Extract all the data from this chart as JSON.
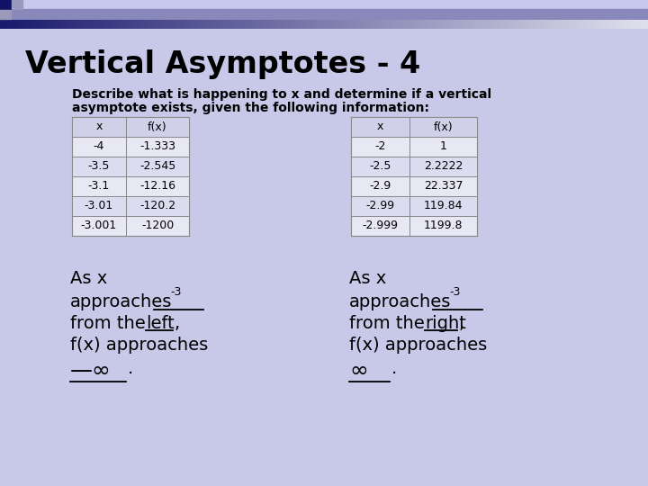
{
  "title": "Vertical Asymptotes - 4",
  "subtitle_line1": "Describe what is happening to x and determine if a vertical",
  "subtitle_line2": "asymptote exists, given the following information:",
  "bg_color": "#c8c8e8",
  "table1": {
    "headers": [
      "x",
      "f(x)"
    ],
    "rows": [
      [
        "-4",
        "-1.333"
      ],
      [
        "-3.5",
        "-2.545"
      ],
      [
        "-3.1",
        "-12.16"
      ],
      [
        "-3.01",
        "-120.2"
      ],
      [
        "-3.001",
        "-1200"
      ]
    ]
  },
  "table2": {
    "headers": [
      "x",
      "f(x)"
    ],
    "rows": [
      [
        "-2",
        "1"
      ],
      [
        "-2.5",
        "2.2222"
      ],
      [
        "-2.9",
        "22.337"
      ],
      [
        "-2.99",
        "119.84"
      ],
      [
        "-2.999",
        "1199.8"
      ]
    ]
  },
  "left_superscript": "-3",
  "right_superscript": "-3",
  "left_underline_word": "left",
  "right_underline_word": "right",
  "left_bottom_symbol": "—∞",
  "right_bottom_symbol": "∞"
}
